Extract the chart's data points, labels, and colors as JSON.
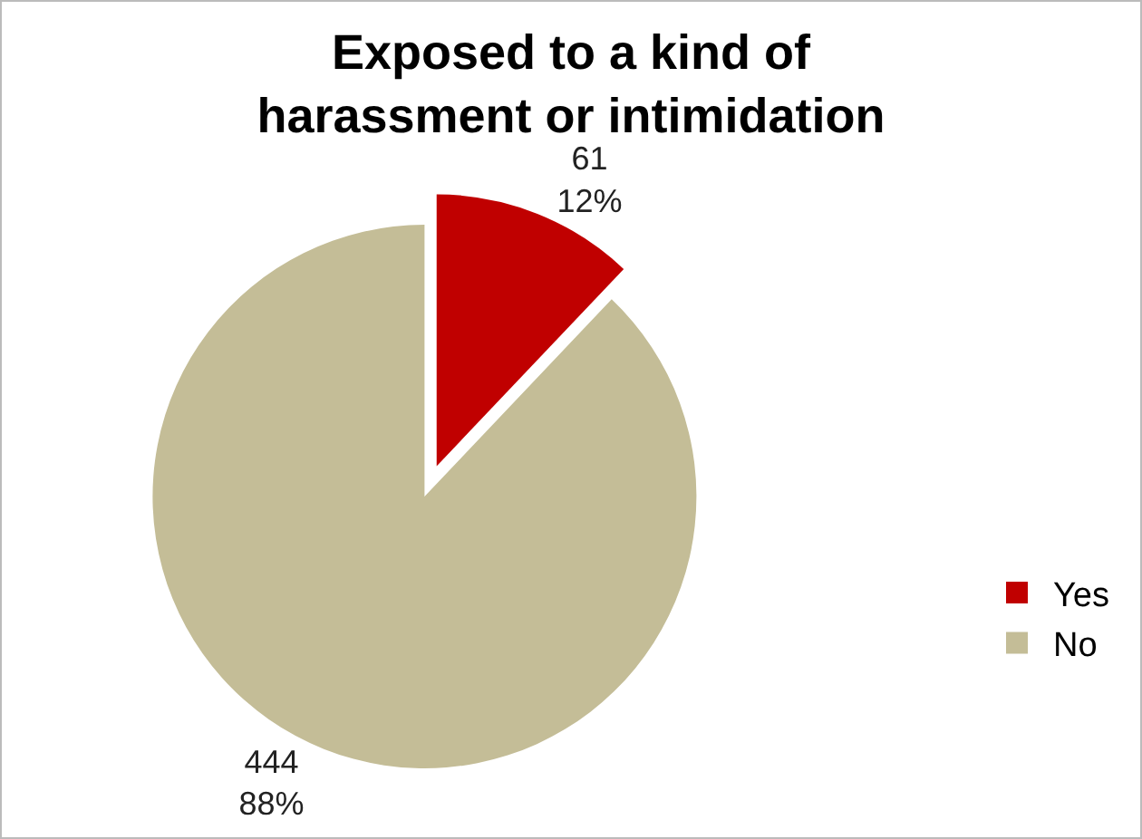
{
  "chart_data": {
    "type": "pie",
    "title": "Exposed to a kind of harassment or intimidation",
    "categories": [
      "Yes",
      "No"
    ],
    "values": [
      61,
      444
    ],
    "colors": [
      "#c00000",
      "#c4bd97"
    ],
    "value_labels": [
      "61\n12%",
      "444\n88%"
    ],
    "legend": "right"
  }
}
